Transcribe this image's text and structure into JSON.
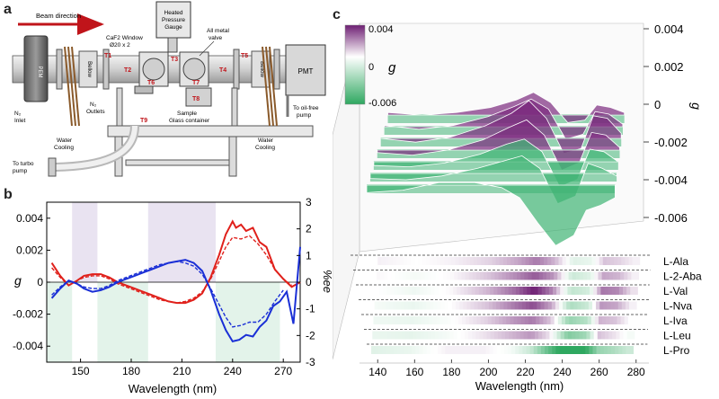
{
  "panel_labels": {
    "a": "a",
    "b": "b",
    "c": "c"
  },
  "schematic": {
    "beam_direction": "Beam direction",
    "window_line1": "CaF2 Window",
    "window_line2": "Ø20 x 2",
    "gauge_line1": "Heated",
    "gauge_line2": "Pressure",
    "gauge_line3": "Gauge",
    "valve_line1": "All metal",
    "valve_line2": "valve",
    "pem": "PEM",
    "pmt": "PMT",
    "bellow_left": "Bellow",
    "bellow_right": "Bellow",
    "n2_inlet_1": "N₂",
    "n2_inlet_2": "Inlet",
    "n2_outlets_1": "N₂",
    "n2_outlets_2": "Outlets",
    "water_cooling_left_1": "Water",
    "water_cooling_left_2": "Cooling",
    "water_cooling_right_1": "Water",
    "water_cooling_right_2": "Cooling",
    "sample_1": "Sample",
    "sample_2": "Glass container",
    "oil_free_1": "To oil-free",
    "oil_free_2": "pump",
    "turbo_1": "To turbo",
    "turbo_2": "pump",
    "t_labels": [
      "T1",
      "T2",
      "T3",
      "T4",
      "T5",
      "T6",
      "T7",
      "T8",
      "T9"
    ]
  },
  "accent_colors": {
    "red": "#e0201b",
    "blue": "#1a2fd6",
    "purple": "#7a2a7e",
    "green": "#3fb374",
    "shade_purple": "#e9e3f1",
    "shade_green": "#e3f3ea"
  },
  "chart_data": [
    {
      "type": "line",
      "panel": "b",
      "xlabel": "Wavelength (nm)",
      "ylabel": "g",
      "y2label": "%ee",
      "xlim": [
        130,
        280
      ],
      "ylim": [
        -0.005,
        0.005
      ],
      "y2lim": [
        -3,
        3
      ],
      "xticks": [
        "150",
        "180",
        "210",
        "240",
        "270"
      ],
      "yticks": [
        "0.004",
        "0.002",
        "0",
        "-0.002",
        "-0.004"
      ],
      "y2ticks": [
        "3",
        "2",
        "1",
        "0",
        "-1",
        "-2",
        "-3"
      ],
      "shaded_regions": [
        {
          "color": "purple",
          "range": [
            145,
            160
          ],
          "side": "top"
        },
        {
          "color": "purple",
          "range": [
            190,
            230
          ],
          "side": "top"
        },
        {
          "color": "green",
          "range": [
            130,
            145
          ],
          "side": "bottom"
        },
        {
          "color": "green",
          "range": [
            160,
            190
          ],
          "side": "bottom"
        },
        {
          "color": "green",
          "range": [
            230,
            268
          ],
          "side": "bottom"
        }
      ],
      "series": [
        {
          "color": "red",
          "style": "solid",
          "x": [
            133,
            138,
            143,
            148,
            152,
            157,
            162,
            167,
            172,
            177,
            182,
            187,
            192,
            197,
            202,
            207,
            212,
            217,
            222,
            227,
            232,
            236,
            240,
            242,
            245,
            248,
            252,
            256,
            260,
            265,
            270,
            275,
            280
          ],
          "y": [
            0.0012,
            0.0004,
            -0.0002,
            0.0001,
            0.0004,
            0.0005,
            0.0005,
            0.0003,
            0.0,
            -0.0002,
            -0.0004,
            -0.0006,
            -0.0008,
            -0.001,
            -0.0012,
            -0.0013,
            -0.0013,
            -0.0011,
            -0.0007,
            0.0003,
            0.0017,
            0.003,
            0.0038,
            0.0034,
            0.0036,
            0.0032,
            0.0034,
            0.0025,
            0.0022,
            0.0008,
            0.0002,
            -0.0003,
            0.0
          ]
        },
        {
          "color": "red",
          "style": "dashed",
          "x": [
            133,
            138,
            143,
            148,
            152,
            157,
            162,
            167,
            172,
            177,
            182,
            187,
            192,
            197,
            202,
            207,
            212,
            217,
            222,
            227,
            232,
            236,
            240,
            245,
            250,
            255,
            260,
            265,
            270,
            275
          ],
          "y": [
            0.0009,
            0.0003,
            -0.0002,
            0.0001,
            0.0003,
            0.0004,
            0.0004,
            0.0002,
            -0.0001,
            -0.0003,
            -0.0005,
            -0.0007,
            -0.0009,
            -0.0011,
            -0.0012,
            -0.0013,
            -0.0012,
            -0.001,
            -0.0006,
            0.0002,
            0.0013,
            0.0022,
            0.0028,
            0.0027,
            0.0029,
            0.0024,
            0.0017,
            0.0008,
            0.0002,
            -0.0002
          ]
        },
        {
          "color": "blue",
          "style": "solid",
          "x": [
            133,
            138,
            143,
            148,
            152,
            157,
            162,
            167,
            172,
            177,
            182,
            187,
            192,
            197,
            202,
            207,
            212,
            217,
            222,
            227,
            232,
            236,
            240,
            244,
            248,
            252,
            256,
            260,
            264,
            268,
            272,
            276,
            280
          ],
          "y": [
            -0.001,
            -0.0004,
            0.0001,
            -0.0001,
            -0.0004,
            -0.0006,
            -0.0005,
            -0.0003,
            0.0,
            0.0002,
            0.0004,
            0.0006,
            0.0008,
            0.001,
            0.0012,
            0.0013,
            0.0014,
            0.0012,
            0.0007,
            -0.0005,
            -0.002,
            -0.003,
            -0.0037,
            -0.0036,
            -0.0033,
            -0.0034,
            -0.0028,
            -0.0024,
            -0.0015,
            -0.0012,
            -0.0006,
            -0.0026,
            0.0022
          ]
        },
        {
          "color": "blue",
          "style": "dashed",
          "x": [
            133,
            138,
            143,
            148,
            152,
            157,
            162,
            167,
            172,
            177,
            182,
            187,
            192,
            197,
            202,
            207,
            212,
            217,
            222,
            227,
            232,
            236,
            240,
            245,
            250,
            255,
            260,
            265,
            270
          ],
          "y": [
            -0.0008,
            -0.0003,
            0.0001,
            -0.0001,
            -0.0003,
            -0.0004,
            -0.0004,
            -0.0002,
            0.0001,
            0.0003,
            0.0005,
            0.0007,
            0.0009,
            0.0011,
            0.0012,
            0.0013,
            0.0012,
            0.001,
            0.0005,
            -0.0004,
            -0.0014,
            -0.0022,
            -0.0028,
            -0.0027,
            -0.0025,
            -0.0025,
            -0.002,
            -0.0012,
            -0.0005
          ]
        }
      ]
    },
    {
      "type": "area",
      "panel": "c",
      "xlabel": "Wavelength (nm)",
      "ylabel": "g",
      "xlim": [
        135,
        285
      ],
      "ylim": [
        -0.006,
        0.004
      ],
      "xticks": [
        "140",
        "160",
        "180",
        "200",
        "220",
        "240",
        "260",
        "280"
      ],
      "zticks": [
        "0.004",
        "0.002",
        "0",
        "-0.002",
        "-0.004",
        "-0.006"
      ],
      "colorbar": {
        "max": "0.004",
        "zero": "0",
        "min": "-0.006",
        "label": "g"
      },
      "series": [
        {
          "name": "L-Ala",
          "x": [
            140,
            160,
            180,
            200,
            215,
            225,
            235,
            245,
            255,
            262,
            270,
            278
          ],
          "y": [
            0.0002,
            0.0,
            0.0002,
            0.0006,
            0.0012,
            0.0018,
            0.001,
            -0.0006,
            -0.0004,
            0.0008,
            0.0006,
            0.0002
          ]
        },
        {
          "name": "L-2-Aba",
          "x": [
            140,
            160,
            180,
            200,
            215,
            225,
            235,
            245,
            255,
            262,
            270,
            278
          ],
          "y": [
            0.0001,
            -0.0002,
            0.0001,
            0.0008,
            0.0016,
            0.0022,
            0.0014,
            -0.001,
            -0.0006,
            0.0012,
            0.001,
            0.0002
          ]
        },
        {
          "name": "L-Val",
          "x": [
            140,
            160,
            180,
            200,
            215,
            225,
            235,
            245,
            255,
            262,
            270,
            278
          ],
          "y": [
            0.0,
            -0.0003,
            0.0001,
            0.001,
            0.002,
            0.003,
            0.0016,
            -0.0012,
            -0.0008,
            0.0018,
            0.0016,
            0.0004
          ]
        },
        {
          "name": "L-Nva",
          "x": [
            140,
            160,
            180,
            200,
            215,
            225,
            235,
            245,
            255,
            262,
            270,
            278
          ],
          "y": [
            -0.0002,
            -0.0004,
            0.0,
            0.0008,
            0.0018,
            0.0024,
            0.0012,
            -0.0016,
            -0.001,
            0.0014,
            0.0012,
            0.0002
          ]
        },
        {
          "name": "L-Iva",
          "x": [
            140,
            160,
            180,
            200,
            215,
            225,
            235,
            245,
            255,
            262,
            270,
            278
          ],
          "y": [
            -0.0003,
            -0.0004,
            -0.0001,
            0.0006,
            0.0014,
            0.0018,
            0.0008,
            -0.002,
            -0.0014,
            0.001,
            0.0008,
            0.0
          ]
        },
        {
          "name": "L-Leu",
          "x": [
            140,
            160,
            180,
            200,
            215,
            225,
            235,
            245,
            255,
            262,
            270,
            278
          ],
          "y": [
            -0.0004,
            -0.0005,
            -0.0002,
            0.0004,
            0.001,
            0.0014,
            0.0004,
            -0.0024,
            -0.0018,
            0.0008,
            0.0004,
            -0.0002
          ]
        },
        {
          "name": "L-Pro",
          "x": [
            140,
            160,
            180,
            200,
            215,
            225,
            235,
            245,
            255,
            262,
            270,
            278
          ],
          "y": [
            -0.0006,
            -0.0004,
            0.0002,
            0.0002,
            -0.0002,
            -0.001,
            -0.003,
            -0.0048,
            -0.004,
            -0.002,
            -0.0016,
            -0.001
          ]
        }
      ]
    }
  ]
}
